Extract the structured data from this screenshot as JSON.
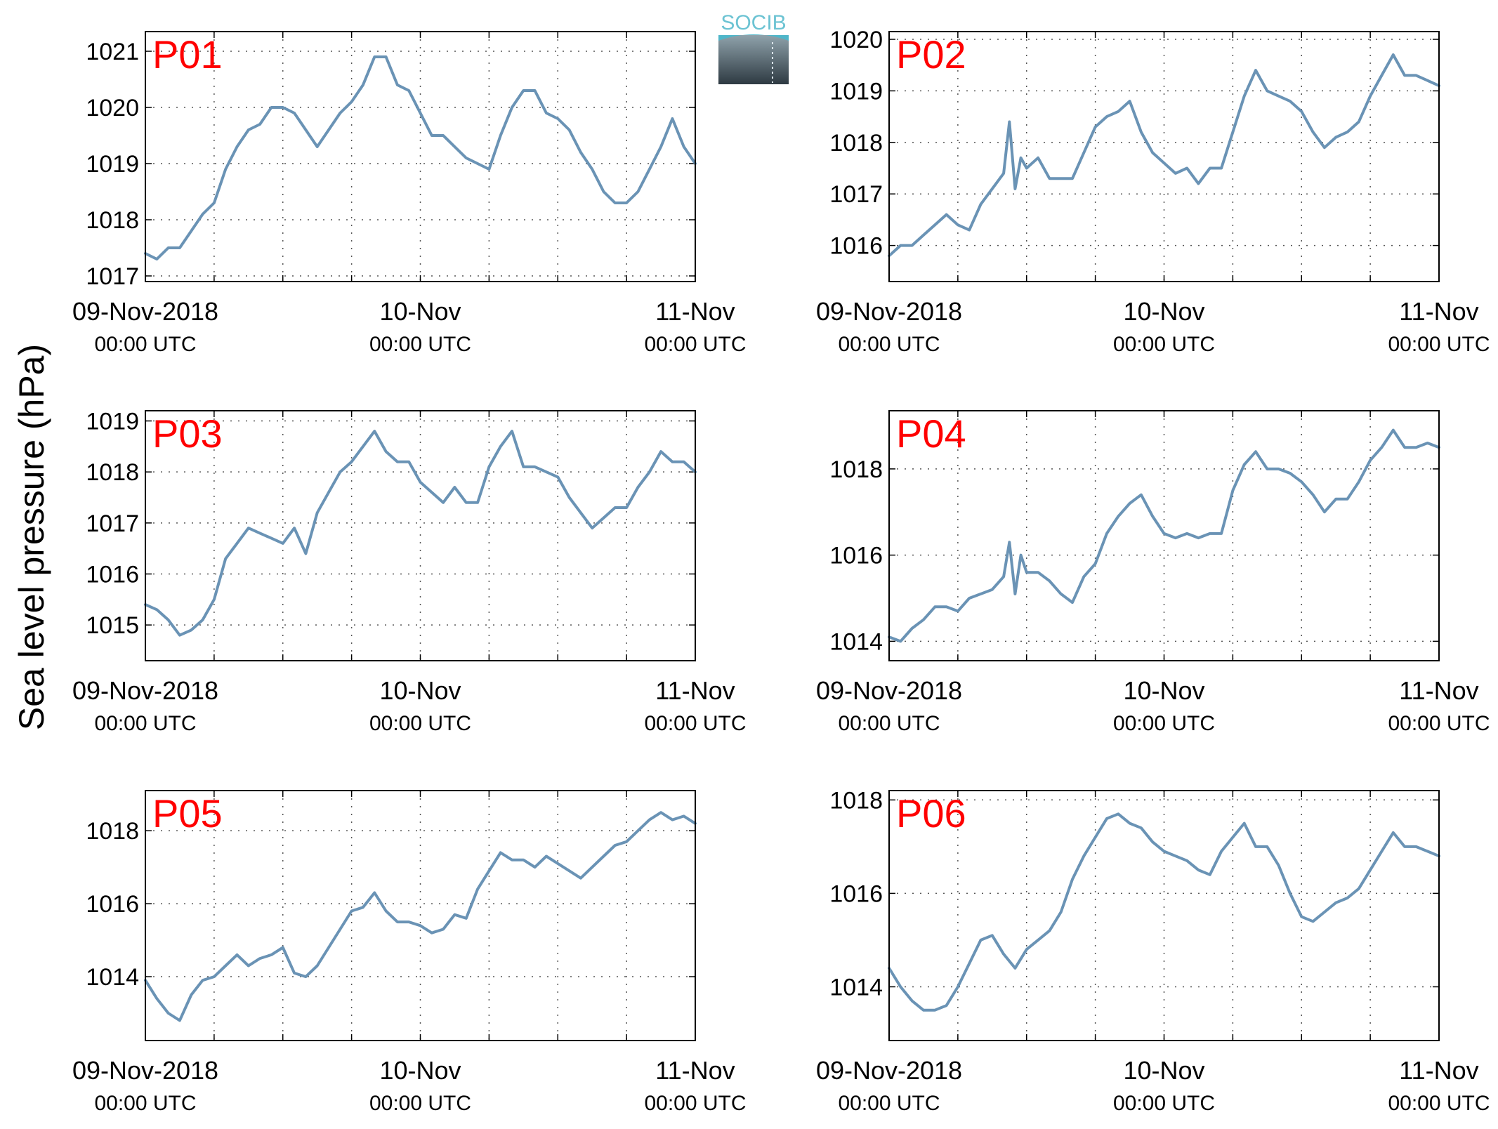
{
  "figure": {
    "ylabel": "Sea level pressure (hPa)",
    "logo_text": "SOCIB",
    "line_color": "#6a93b5",
    "label_color": "#ff0000",
    "grid_color": "#555555",
    "x_ticks": [
      {
        "major": "09-Nov-2018",
        "minor": "00:00 UTC"
      },
      {
        "major": "10-Nov",
        "minor": "00:00 UTC"
      },
      {
        "major": "11-Nov",
        "minor": "00:00 UTC"
      }
    ]
  },
  "chart_data": [
    {
      "type": "line",
      "label": "P01",
      "xlim_hours": [
        0,
        48
      ],
      "ylim": [
        1016.9,
        1021.35
      ],
      "yticks": [
        1017,
        1018,
        1019,
        1020,
        1021
      ],
      "x_hours": [
        0,
        1,
        2,
        3,
        4,
        5,
        6,
        7,
        8,
        9,
        10,
        11,
        12,
        13,
        14,
        15,
        16,
        17,
        18,
        19,
        20,
        21,
        22,
        23,
        24,
        25,
        26,
        27,
        28,
        29,
        30,
        31,
        32,
        33,
        34,
        35,
        36,
        37,
        38,
        39,
        40,
        41,
        42,
        43,
        44,
        45,
        46,
        47,
        48
      ],
      "values": [
        1017.4,
        1017.3,
        1017.5,
        1017.5,
        1017.8,
        1018.1,
        1018.3,
        1018.9,
        1019.3,
        1019.6,
        1019.7,
        1020.0,
        1020.0,
        1019.9,
        1019.6,
        1019.3,
        1019.6,
        1019.9,
        1020.1,
        1020.4,
        1020.9,
        1020.9,
        1020.4,
        1020.3,
        1019.9,
        1019.5,
        1019.5,
        1019.3,
        1019.1,
        1019.0,
        1018.9,
        1019.5,
        1020.0,
        1020.3,
        1020.3,
        1019.9,
        1019.8,
        1019.6,
        1019.2,
        1018.9,
        1018.5,
        1018.3,
        1018.3,
        1018.5,
        1018.9,
        1019.3,
        1019.8,
        1019.3,
        1019.0
      ]
    },
    {
      "type": "line",
      "label": "P02",
      "xlim_hours": [
        0,
        48
      ],
      "ylim": [
        1015.3,
        1020.15
      ],
      "yticks": [
        1016,
        1017,
        1018,
        1019,
        1020
      ],
      "x_hours": [
        0,
        1,
        2,
        3,
        4,
        5,
        6,
        7,
        8,
        9,
        10,
        10.5,
        11,
        11.5,
        12,
        13,
        14,
        15,
        16,
        17,
        18,
        19,
        20,
        21,
        22,
        23,
        24,
        25,
        26,
        27,
        28,
        29,
        30,
        31,
        32,
        33,
        34,
        35,
        36,
        37,
        38,
        39,
        40,
        41,
        42,
        43,
        44,
        45,
        46,
        47,
        48
      ],
      "values": [
        1015.8,
        1016.0,
        1016.0,
        1016.2,
        1016.4,
        1016.6,
        1016.4,
        1016.3,
        1016.8,
        1017.1,
        1017.4,
        1018.4,
        1017.1,
        1017.7,
        1017.5,
        1017.7,
        1017.3,
        1017.3,
        1017.3,
        1017.8,
        1018.3,
        1018.5,
        1018.6,
        1018.8,
        1018.2,
        1017.8,
        1017.6,
        1017.4,
        1017.5,
        1017.2,
        1017.5,
        1017.5,
        1018.2,
        1018.9,
        1019.4,
        1019.0,
        1018.9,
        1018.8,
        1018.6,
        1018.2,
        1017.9,
        1018.1,
        1018.2,
        1018.4,
        1018.9,
        1019.3,
        1019.7,
        1019.3,
        1019.3,
        1019.2,
        1019.1
      ]
    },
    {
      "type": "line",
      "label": "P03",
      "xlim_hours": [
        0,
        48
      ],
      "ylim": [
        1014.3,
        1019.2
      ],
      "yticks": [
        1015,
        1016,
        1017,
        1018,
        1019
      ],
      "x_hours": [
        0,
        1,
        2,
        3,
        4,
        5,
        6,
        7,
        8,
        9,
        10,
        11,
        12,
        13,
        14,
        15,
        16,
        17,
        18,
        19,
        20,
        21,
        22,
        23,
        24,
        25,
        26,
        27,
        28,
        29,
        30,
        31,
        32,
        33,
        34,
        35,
        36,
        37,
        38,
        39,
        40,
        41,
        42,
        43,
        44,
        45,
        46,
        47,
        48
      ],
      "values": [
        1015.4,
        1015.3,
        1015.1,
        1014.8,
        1014.9,
        1015.1,
        1015.5,
        1016.3,
        1016.6,
        1016.9,
        1016.8,
        1016.7,
        1016.6,
        1016.9,
        1016.4,
        1017.2,
        1017.6,
        1018.0,
        1018.2,
        1018.5,
        1018.8,
        1018.4,
        1018.2,
        1018.2,
        1017.8,
        1017.6,
        1017.4,
        1017.7,
        1017.4,
        1017.4,
        1018.1,
        1018.5,
        1018.8,
        1018.1,
        1018.1,
        1018.0,
        1017.9,
        1017.5,
        1017.2,
        1016.9,
        1017.1,
        1017.3,
        1017.3,
        1017.7,
        1018.0,
        1018.4,
        1018.2,
        1018.2,
        1018.0
      ]
    },
    {
      "type": "line",
      "label": "P04",
      "xlim_hours": [
        0,
        48
      ],
      "ylim": [
        1013.55,
        1019.35
      ],
      "yticks": [
        1014,
        1016,
        1018
      ],
      "x_hours": [
        0,
        1,
        2,
        3,
        4,
        5,
        6,
        7,
        8,
        9,
        10,
        10.5,
        11,
        11.5,
        12,
        13,
        14,
        15,
        16,
        17,
        18,
        19,
        20,
        21,
        22,
        23,
        24,
        25,
        26,
        27,
        28,
        29,
        30,
        31,
        32,
        33,
        34,
        35,
        36,
        37,
        38,
        39,
        40,
        41,
        42,
        43,
        44,
        45,
        46,
        47,
        48
      ],
      "values": [
        1014.1,
        1014.0,
        1014.3,
        1014.5,
        1014.8,
        1014.8,
        1014.7,
        1015.0,
        1015.1,
        1015.2,
        1015.5,
        1016.3,
        1015.1,
        1016.0,
        1015.6,
        1015.6,
        1015.4,
        1015.1,
        1014.9,
        1015.5,
        1015.8,
        1016.5,
        1016.9,
        1017.2,
        1017.4,
        1016.9,
        1016.5,
        1016.4,
        1016.5,
        1016.4,
        1016.5,
        1016.5,
        1017.5,
        1018.1,
        1018.4,
        1018.0,
        1018.0,
        1017.9,
        1017.7,
        1017.4,
        1017.0,
        1017.3,
        1017.3,
        1017.7,
        1018.2,
        1018.5,
        1018.9,
        1018.5,
        1018.5,
        1018.6,
        1018.5
      ]
    },
    {
      "type": "line",
      "label": "P05",
      "xlim_hours": [
        0,
        48
      ],
      "ylim": [
        1012.25,
        1019.1
      ],
      "yticks": [
        1014,
        1016,
        1018
      ],
      "x_hours": [
        0,
        1,
        2,
        3,
        4,
        5,
        6,
        7,
        8,
        9,
        10,
        11,
        12,
        13,
        14,
        15,
        16,
        17,
        18,
        19,
        20,
        21,
        22,
        23,
        24,
        25,
        26,
        27,
        28,
        29,
        30,
        31,
        32,
        33,
        34,
        35,
        36,
        37,
        38,
        39,
        40,
        41,
        42,
        43,
        44,
        45,
        46,
        47,
        48
      ],
      "values": [
        1013.9,
        1013.4,
        1013.0,
        1012.8,
        1013.5,
        1013.9,
        1014.0,
        1014.3,
        1014.6,
        1014.3,
        1014.5,
        1014.6,
        1014.8,
        1014.1,
        1014.0,
        1014.3,
        1014.8,
        1015.3,
        1015.8,
        1015.9,
        1016.3,
        1015.8,
        1015.5,
        1015.5,
        1015.4,
        1015.2,
        1015.3,
        1015.7,
        1015.6,
        1016.4,
        1016.9,
        1017.4,
        1017.2,
        1017.2,
        1017.0,
        1017.3,
        1017.1,
        1016.9,
        1016.7,
        1017.0,
        1017.3,
        1017.6,
        1017.7,
        1018.0,
        1018.3,
        1018.5,
        1018.3,
        1018.4,
        1018.2
      ]
    },
    {
      "type": "line",
      "label": "P06",
      "xlim_hours": [
        0,
        48
      ],
      "ylim": [
        1012.85,
        1018.2
      ],
      "yticks": [
        1014,
        1016,
        1018
      ],
      "x_hours": [
        0,
        1,
        2,
        3,
        4,
        5,
        6,
        7,
        8,
        9,
        10,
        11,
        12,
        13,
        14,
        15,
        16,
        17,
        18,
        19,
        20,
        21,
        22,
        23,
        24,
        25,
        26,
        27,
        28,
        29,
        30,
        31,
        32,
        33,
        34,
        35,
        36,
        37,
        38,
        39,
        40,
        41,
        42,
        43,
        44,
        45,
        46,
        47,
        48
      ],
      "values": [
        1014.4,
        1014.0,
        1013.7,
        1013.5,
        1013.5,
        1013.6,
        1014.0,
        1014.5,
        1015.0,
        1015.1,
        1014.7,
        1014.4,
        1014.8,
        1015.0,
        1015.2,
        1015.6,
        1016.3,
        1016.8,
        1017.2,
        1017.6,
        1017.7,
        1017.5,
        1017.4,
        1017.1,
        1016.9,
        1016.8,
        1016.7,
        1016.5,
        1016.4,
        1016.9,
        1017.2,
        1017.5,
        1017.0,
        1017.0,
        1016.6,
        1016.0,
        1015.5,
        1015.4,
        1015.6,
        1015.8,
        1015.9,
        1016.1,
        1016.5,
        1016.9,
        1017.3,
        1017.0,
        1017.0,
        1016.9,
        1016.8
      ]
    }
  ]
}
